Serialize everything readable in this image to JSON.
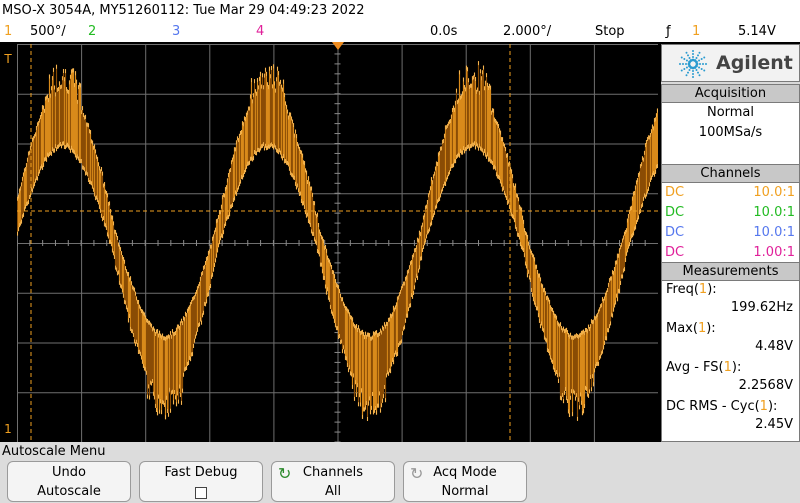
{
  "title": "MSO-X 3054A, MY51260112: Tue Mar 29 04:49:23 2022",
  "status": {
    "ch1_num": "1",
    "ch1_scale": "500°/",
    "ch2_num": "2",
    "ch3_num": "3",
    "ch4_num": "4",
    "time_delay": "0.0s",
    "time_scale": "2.000°/",
    "run_state": "Stop",
    "trigger_symbol": "ƒ",
    "trigger_channel": "1",
    "trigger_level": "5.14V"
  },
  "colors": {
    "ch1": "#f0a020",
    "ch2": "#22bb22",
    "ch3": "#5577ee",
    "ch4": "#e0209a",
    "accent": "#2a9bd0"
  },
  "panel": {
    "brand": "Agilent",
    "acquisition": {
      "header": "Acquisition",
      "mode": "Normal",
      "rate": "100MSa/s"
    },
    "channels": {
      "header": "Channels",
      "rows": [
        {
          "coupling": "DC",
          "probe": "10.0:1"
        },
        {
          "coupling": "DC",
          "probe": "10.0:1"
        },
        {
          "coupling": "DC",
          "probe": "10.0:1"
        },
        {
          "coupling": "DC",
          "probe": "1.00:1"
        }
      ]
    },
    "measurements": {
      "header": "Measurements",
      "items": [
        {
          "label": "Freq(",
          "ch": "1",
          "suffix": "):",
          "value": "199.62Hz"
        },
        {
          "label": "Max(",
          "ch": "1",
          "suffix": "):",
          "value": "4.48V"
        },
        {
          "label": "Avg - FS(",
          "ch": "1",
          "suffix": "):",
          "value": "2.2568V"
        },
        {
          "label": "DC RMS - Cyc(",
          "ch": "1",
          "suffix": "):",
          "value": "2.45V"
        }
      ]
    }
  },
  "menu": {
    "title": "Autoscale Menu",
    "softkeys": [
      {
        "line1": "Undo",
        "line2": "Autoscale"
      },
      {
        "line1": "Fast Debug",
        "line2": ""
      },
      {
        "line1": "Channels",
        "line2": "All"
      },
      {
        "line1": "Acq Mode",
        "line2": "Normal"
      }
    ]
  },
  "markers": {
    "ground": "1",
    "trigger": "T"
  },
  "waveform": {
    "cycles": 4,
    "period_divisions": 3.2,
    "amplitude_fraction": 0.62
  }
}
